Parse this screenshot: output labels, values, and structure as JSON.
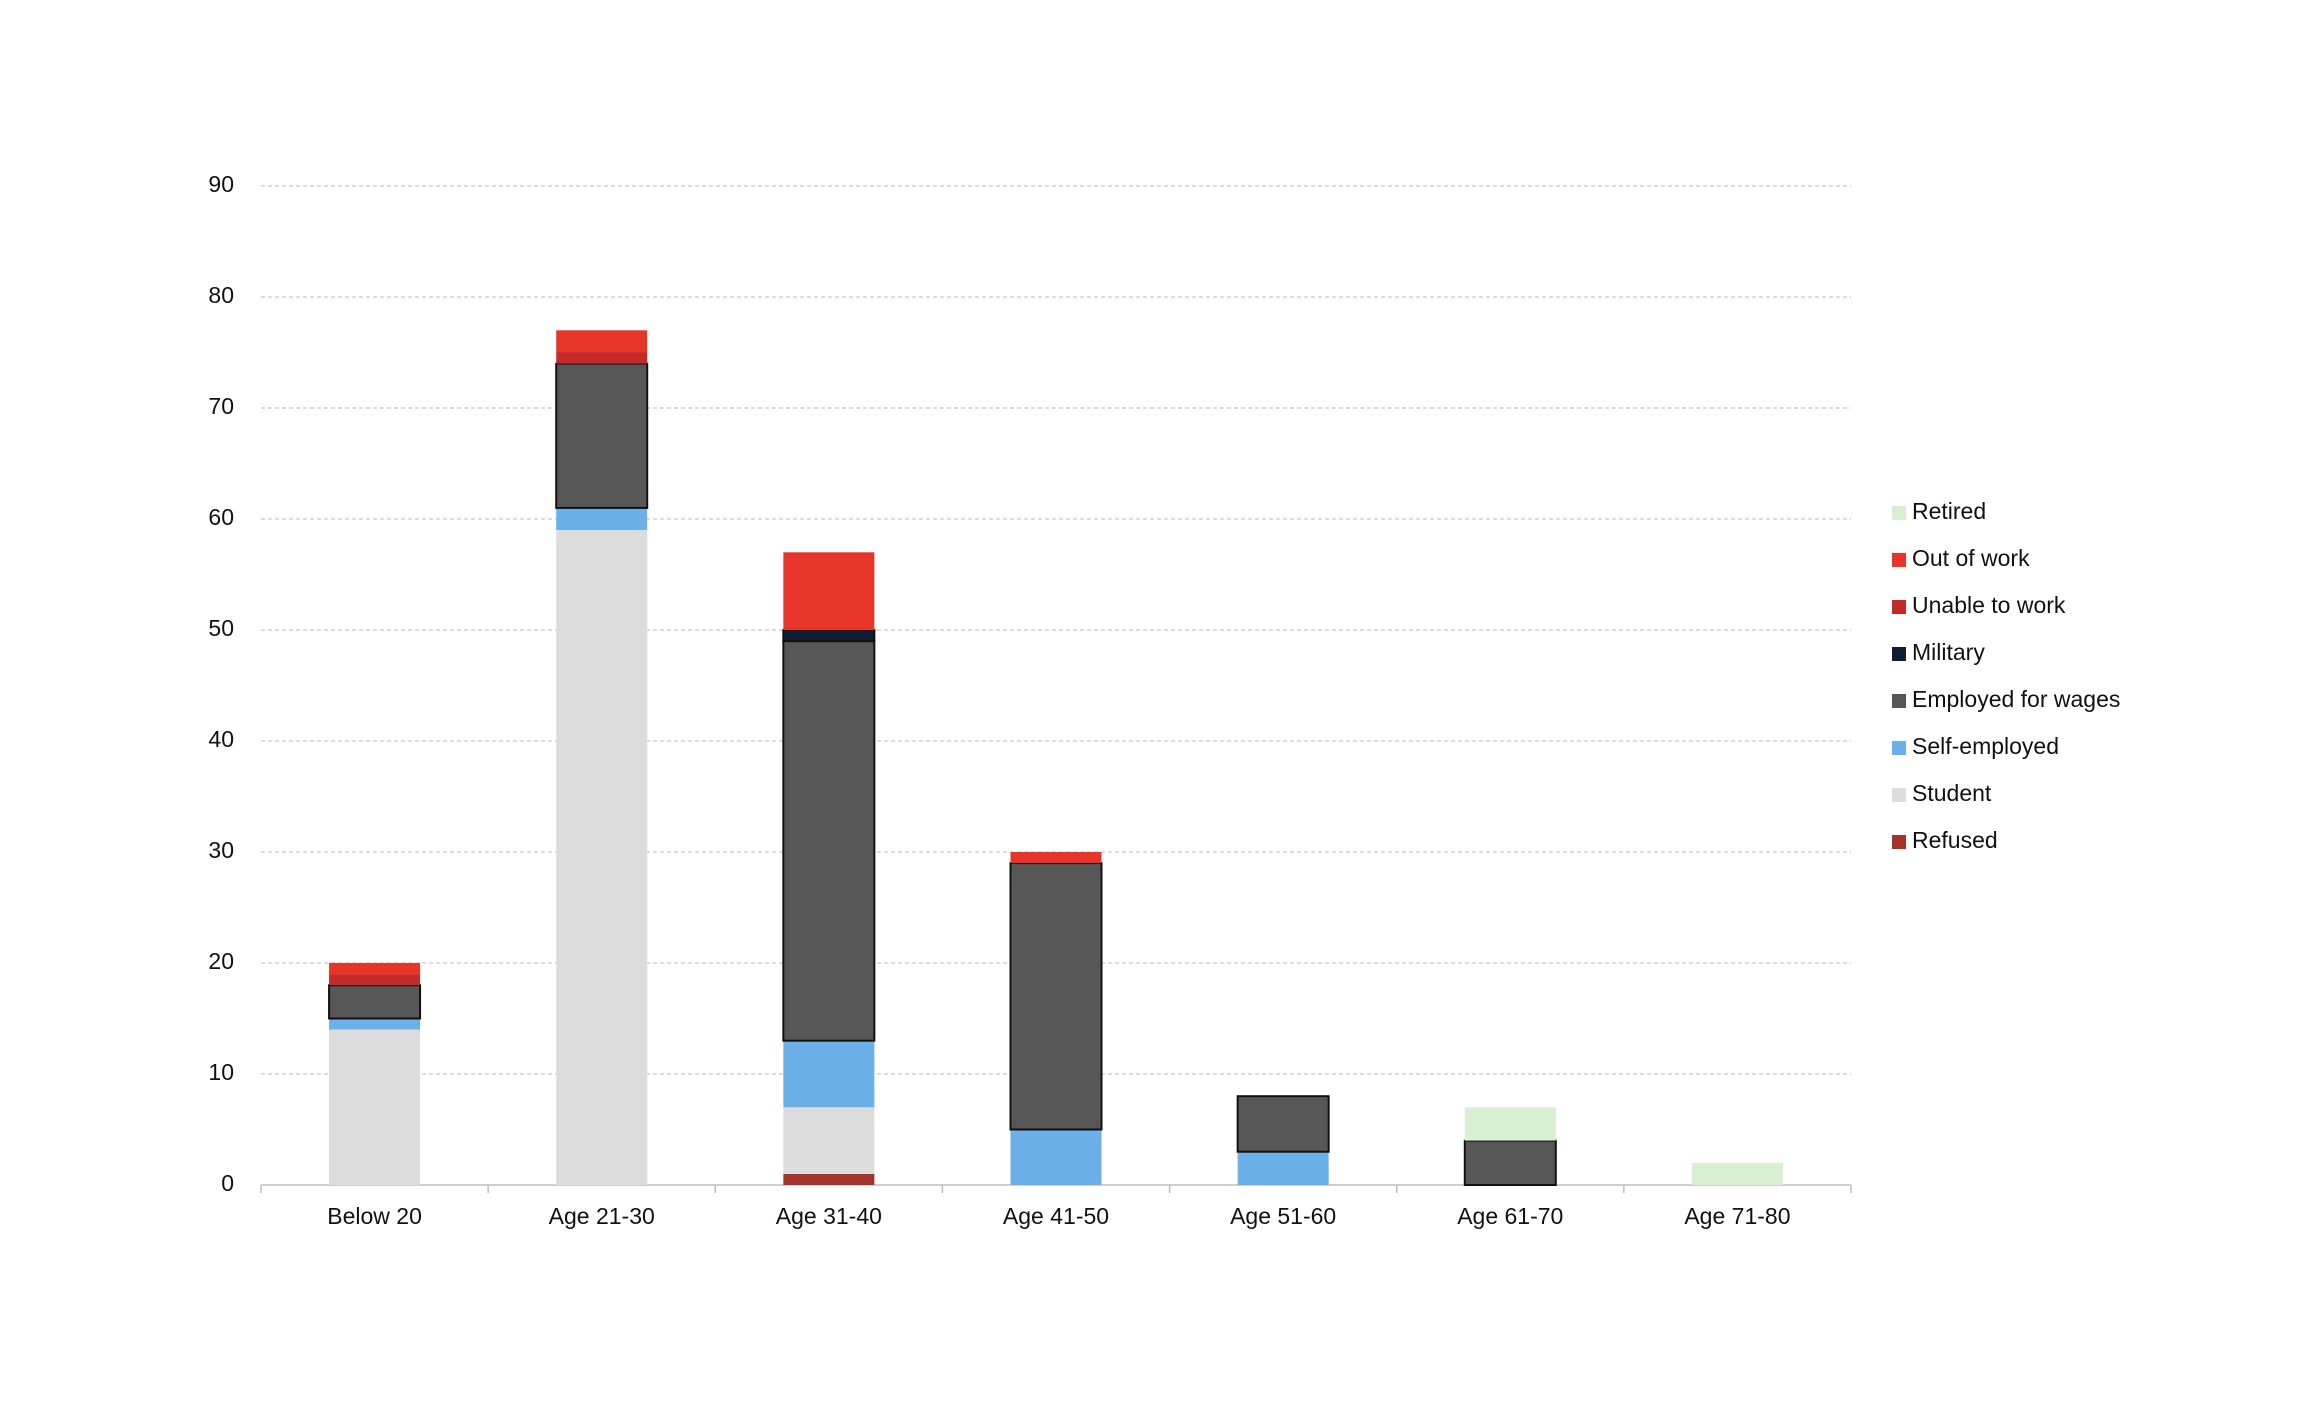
{
  "chart_data": {
    "type": "stacked_bar",
    "categories": [
      "Below 20",
      "Age 21-30",
      "Age 31-40",
      "Age 41-50",
      "Age 51-60",
      "Age 61-70",
      "Age 71-80"
    ],
    "series": [
      {
        "name": "Refused",
        "color": "#a3342c",
        "values": [
          0,
          0,
          1,
          0,
          0,
          0,
          0
        ]
      },
      {
        "name": "Student",
        "color": "#dcdcdc",
        "values": [
          14,
          59,
          6,
          0,
          0,
          0,
          0
        ]
      },
      {
        "name": "Self-employed",
        "color": "#6cb0ea",
        "values": [
          1,
          2,
          6,
          5,
          3,
          0,
          0
        ]
      },
      {
        "name": "Employed for wages",
        "color": "#575757",
        "values": [
          3,
          13,
          36,
          24,
          5,
          4,
          0
        ]
      },
      {
        "name": "Military",
        "color": "#101c34",
        "values": [
          0,
          0,
          1,
          0,
          0,
          0,
          0
        ]
      },
      {
        "name": "Unable to work",
        "color": "#c42a2a",
        "values": [
          1,
          1,
          0,
          0,
          0,
          0,
          0
        ]
      },
      {
        "name": "Out of work",
        "color": "#e8352a",
        "values": [
          1,
          2,
          7,
          1,
          0,
          0,
          0
        ]
      },
      {
        "name": "Retired",
        "color": "#d8efd2",
        "values": [
          0,
          0,
          0,
          0,
          0,
          3,
          2
        ]
      }
    ],
    "ylim": [
      0,
      90
    ],
    "yticks": [
      0,
      10,
      20,
      30,
      40,
      50,
      60,
      70,
      80,
      90
    ],
    "grid": true,
    "legend": "right"
  }
}
